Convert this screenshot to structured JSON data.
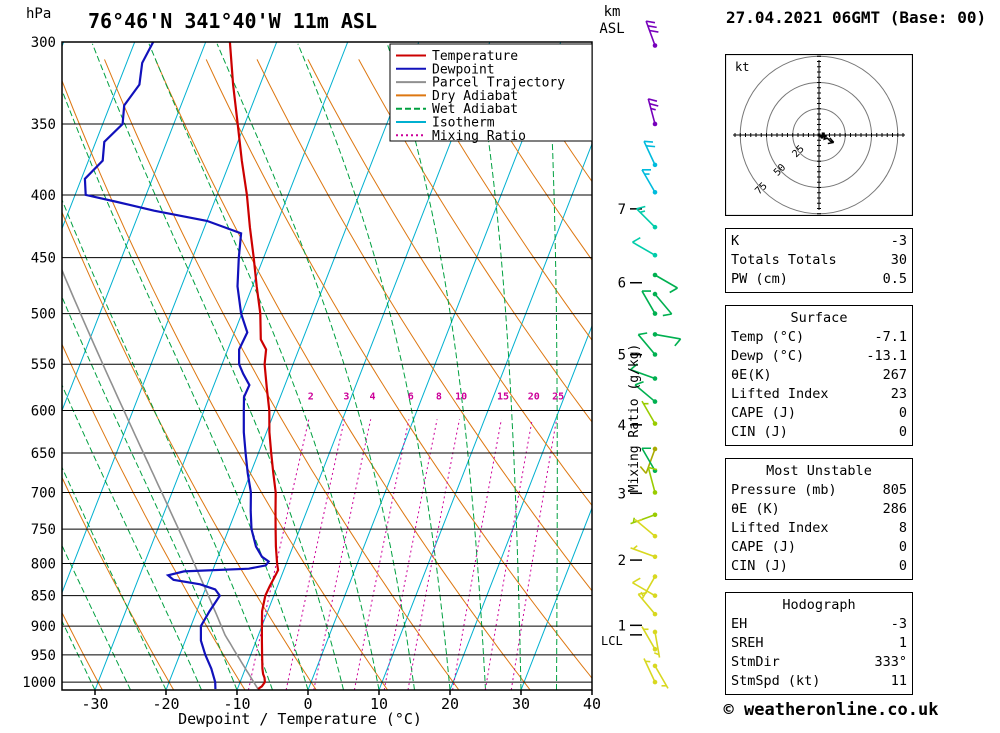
{
  "header": {
    "station": "76°46'N 341°40'W 11m ASL",
    "datetime": "27.04.2021 06GMT (Base: 00)",
    "pressure_unit": "hPa",
    "km_label": "km",
    "asl_label": "ASL"
  },
  "axes": {
    "xlabel": "Dewpoint / Temperature (°C)",
    "x_ticks": [
      -30,
      -20,
      -10,
      0,
      10,
      20,
      30,
      40
    ],
    "pressure_ticks": [
      300,
      350,
      400,
      450,
      500,
      550,
      600,
      650,
      700,
      750,
      800,
      850,
      900,
      950,
      1000
    ],
    "km_ticks": [
      7,
      6,
      5,
      4,
      3,
      2,
      1
    ],
    "lcl_label": "LCL",
    "mixing_ratio_axis_label": "Mixing Ratio (g/kg)"
  },
  "legend": [
    {
      "label": "Temperature",
      "color": "#cc0000",
      "style": "solid"
    },
    {
      "label": "Dewpoint",
      "color": "#1111bb",
      "style": "solid"
    },
    {
      "label": "Parcel Trajectory",
      "color": "#909090",
      "style": "solid"
    },
    {
      "label": "Dry Adiabat",
      "color": "#dd7711",
      "style": "solid"
    },
    {
      "label": "Wet Adiabat",
      "color": "#00a040",
      "style": "dashed"
    },
    {
      "label": "Isotherm",
      "color": "#00b0d0",
      "style": "solid"
    },
    {
      "label": "Mixing Ratio",
      "color": "#cc0099",
      "style": "dotted"
    }
  ],
  "chart_data": {
    "type": "skewt-log-p-sounding",
    "pressure_range_hpa": [
      300,
      1015
    ],
    "temp_axis_range_c": [
      -30,
      40
    ],
    "isotherm_step_c": 10,
    "dry_adiabat_step_c": 10,
    "wet_adiabat_step_c": 5,
    "mixing_ratio_lines_gkg": [
      2,
      3,
      4,
      6,
      8,
      10,
      15,
      20,
      25
    ],
    "temperature_profile": [
      [
        1013,
        -7.1
      ],
      [
        1008,
        -6.7
      ],
      [
        1000,
        -6.5
      ],
      [
        992,
        -6.8
      ],
      [
        985,
        -7.2
      ],
      [
        975,
        -7.6
      ],
      [
        950,
        -8.4
      ],
      [
        925,
        -9.2
      ],
      [
        900,
        -10.0
      ],
      [
        875,
        -10.8
      ],
      [
        850,
        -11.2
      ],
      [
        835,
        -11.1
      ],
      [
        820,
        -10.9
      ],
      [
        810,
        -10.8
      ],
      [
        800,
        -11.3
      ],
      [
        775,
        -12.4
      ],
      [
        750,
        -13.4
      ],
      [
        725,
        -14.4
      ],
      [
        700,
        -15.4
      ],
      [
        675,
        -16.8
      ],
      [
        650,
        -18.2
      ],
      [
        625,
        -19.6
      ],
      [
        600,
        -20.8
      ],
      [
        575,
        -22.4
      ],
      [
        550,
        -24.0
      ],
      [
        535,
        -24.6
      ],
      [
        525,
        -25.9
      ],
      [
        500,
        -27.4
      ],
      [
        475,
        -29.4
      ],
      [
        450,
        -31.4
      ],
      [
        425,
        -33.6
      ],
      [
        400,
        -35.8
      ],
      [
        375,
        -38.4
      ],
      [
        350,
        -41.0
      ],
      [
        325,
        -43.8
      ],
      [
        300,
        -46.6
      ]
    ],
    "dewpoint_profile": [
      [
        1013,
        -13.1
      ],
      [
        1000,
        -13.5
      ],
      [
        975,
        -14.8
      ],
      [
        950,
        -16.4
      ],
      [
        925,
        -17.8
      ],
      [
        900,
        -18.6
      ],
      [
        875,
        -18.2
      ],
      [
        850,
        -17.6
      ],
      [
        840,
        -18.6
      ],
      [
        832,
        -21.0
      ],
      [
        825,
        -25.0
      ],
      [
        818,
        -26.0
      ],
      [
        812,
        -24.0
      ],
      [
        808,
        -15.0
      ],
      [
        803,
        -12.8
      ],
      [
        797,
        -12.6
      ],
      [
        790,
        -13.8
      ],
      [
        775,
        -15.2
      ],
      [
        750,
        -16.8
      ],
      [
        725,
        -17.9
      ],
      [
        700,
        -18.9
      ],
      [
        675,
        -20.4
      ],
      [
        650,
        -21.8
      ],
      [
        625,
        -23.2
      ],
      [
        600,
        -24.4
      ],
      [
        585,
        -25.1
      ],
      [
        572,
        -25.0
      ],
      [
        560,
        -26.5
      ],
      [
        550,
        -27.6
      ],
      [
        535,
        -28.4
      ],
      [
        518,
        -28.2
      ],
      [
        500,
        -30.1
      ],
      [
        475,
        -32.1
      ],
      [
        450,
        -33.5
      ],
      [
        430,
        -34.5
      ],
      [
        420,
        -40.0
      ],
      [
        412,
        -48.0
      ],
      [
        405,
        -54.0
      ],
      [
        400,
        -58.5
      ],
      [
        388,
        -59.5
      ],
      [
        375,
        -58.0
      ],
      [
        362,
        -58.8
      ],
      [
        350,
        -57.2
      ],
      [
        338,
        -58.0
      ],
      [
        325,
        -57.0
      ],
      [
        312,
        -57.8
      ],
      [
        300,
        -57.4
      ]
    ],
    "parcel": {
      "surface_pressure": 1013,
      "surface_temp": -7.1,
      "surface_dewpoint": -13.1,
      "lcl_pressure": 915
    },
    "wind_barbs": [
      {
        "p": 302,
        "dir": 340,
        "speed": 30,
        "color": "#7700bb"
      },
      {
        "p": 350,
        "dir": 345,
        "speed": 25,
        "color": "#7700bb"
      },
      {
        "p": 378,
        "dir": 335,
        "speed": 20,
        "color": "#00bbdd"
      },
      {
        "p": 398,
        "dir": 330,
        "speed": 15,
        "color": "#00bbdd"
      },
      {
        "p": 425,
        "dir": 315,
        "speed": 15,
        "color": "#00ccaa"
      },
      {
        "p": 448,
        "dir": 300,
        "speed": 10,
        "color": "#00ccaa"
      },
      {
        "p": 465,
        "dir": 120,
        "speed": 10,
        "color": "#00b050"
      },
      {
        "p": 482,
        "dir": 140,
        "speed": 8,
        "color": "#00b050"
      },
      {
        "p": 500,
        "dir": 330,
        "speed": 10,
        "color": "#00b050"
      },
      {
        "p": 520,
        "dir": 100,
        "speed": 8,
        "color": "#00b050"
      },
      {
        "p": 540,
        "dir": 320,
        "speed": 10,
        "color": "#00b050"
      },
      {
        "p": 565,
        "dir": 290,
        "speed": 8,
        "color": "#00b050"
      },
      {
        "p": 590,
        "dir": 310,
        "speed": 10,
        "color": "#00b050"
      },
      {
        "p": 615,
        "dir": 330,
        "speed": 7,
        "color": "#99cc00"
      },
      {
        "p": 645,
        "dir": 200,
        "speed": 8,
        "color": "#aaaa00"
      },
      {
        "p": 672,
        "dir": 330,
        "speed": 10,
        "color": "#00b050"
      },
      {
        "p": 700,
        "dir": 345,
        "speed": 10,
        "color": "#99cc00"
      },
      {
        "p": 730,
        "dir": 250,
        "speed": 7,
        "color": "#99cc00"
      },
      {
        "p": 760,
        "dir": 310,
        "speed": 5,
        "color": "#d8d820"
      },
      {
        "p": 790,
        "dir": 290,
        "speed": 5,
        "color": "#d8d820"
      },
      {
        "p": 820,
        "dir": 210,
        "speed": 7,
        "color": "#d8d820"
      },
      {
        "p": 850,
        "dir": 300,
        "speed": 8,
        "color": "#d8d820"
      },
      {
        "p": 880,
        "dir": 320,
        "speed": 8,
        "color": "#d8d820"
      },
      {
        "p": 910,
        "dir": 170,
        "speed": 5,
        "color": "#d8d820"
      },
      {
        "p": 940,
        "dir": 330,
        "speed": 5,
        "color": "#d8d820"
      },
      {
        "p": 970,
        "dir": 150,
        "speed": 5,
        "color": "#d8d820"
      },
      {
        "p": 1000,
        "dir": 335,
        "speed": 5,
        "color": "#d8d820"
      }
    ],
    "hodograph": {
      "unit_label": "kt",
      "ring_radii_kt": [
        25,
        50,
        75
      ],
      "trace_uv_kt": [
        [
          0,
          0
        ],
        [
          2,
          -1
        ],
        [
          4,
          1
        ],
        [
          3,
          -2
        ],
        [
          6,
          -1
        ],
        [
          5,
          -4
        ],
        [
          8,
          -3
        ],
        [
          11,
          -6
        ],
        [
          14,
          -7
        ]
      ]
    }
  },
  "tables": [
    {
      "rows": [
        {
          "label": "K",
          "value": "-3"
        },
        {
          "label": "Totals Totals",
          "value": "30"
        },
        {
          "label": "PW (cm)",
          "value": "0.5"
        }
      ]
    },
    {
      "title": "Surface",
      "rows": [
        {
          "label": "Temp (°C)",
          "value": "-7.1"
        },
        {
          "label": "Dewp (°C)",
          "value": "-13.1"
        },
        {
          "label": "θE(K)",
          "value": "267"
        },
        {
          "label": "Lifted Index",
          "value": "23"
        },
        {
          "label": "CAPE (J)",
          "value": "0"
        },
        {
          "label": "CIN (J)",
          "value": "0"
        }
      ]
    },
    {
      "title": "Most Unstable",
      "rows": [
        {
          "label": "Pressure (mb)",
          "value": "805"
        },
        {
          "label": "θE (K)",
          "value": "286"
        },
        {
          "label": "Lifted Index",
          "value": "8"
        },
        {
          "label": "CAPE (J)",
          "value": "0"
        },
        {
          "label": "CIN (J)",
          "value": "0"
        }
      ]
    },
    {
      "title": "Hodograph",
      "rows": [
        {
          "label": "EH",
          "value": "-3"
        },
        {
          "label": "SREH",
          "value": "1"
        },
        {
          "label": "StmDir",
          "value": "333°"
        },
        {
          "label": "StmSpd (kt)",
          "value": "11"
        }
      ]
    }
  ],
  "footer": {
    "copyright": "© weatheronline.co.uk"
  }
}
